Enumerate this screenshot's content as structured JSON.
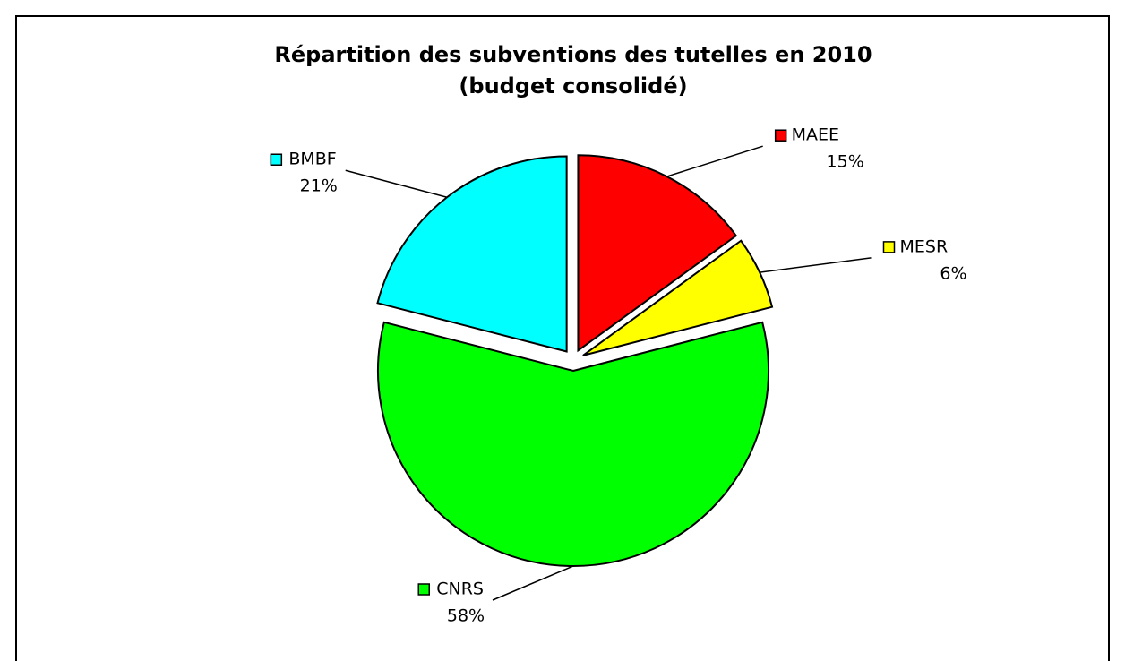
{
  "chart_data": {
    "type": "pie",
    "title": "Répartition des subventions des tutelles en 2010",
    "subtitle": "(budget consolidé)",
    "categories": [
      "MAEE",
      "MESR",
      "CNRS",
      "BMBF"
    ],
    "values": [
      15,
      6,
      58,
      21
    ],
    "value_labels": [
      "15%",
      "6%",
      "58%",
      "21%"
    ],
    "colors": [
      "#ff0000",
      "#ffff00",
      "#00ff00",
      "#00ffff"
    ],
    "legend": true
  }
}
